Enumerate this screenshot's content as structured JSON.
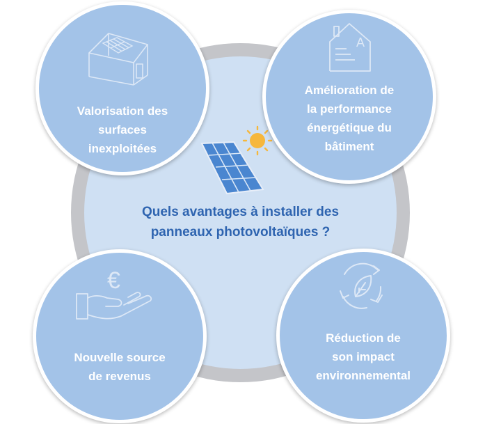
{
  "question": {
    "line1": "Quels avantages à installer des",
    "line2": "panneaux photovoltaïques ?"
  },
  "benefits": [
    {
      "icon": "house-with-solar-panels-icon",
      "lines": [
        "Valorisation des",
        "surfaces",
        "inexploitées"
      ]
    },
    {
      "icon": "energy-rating-house-icon",
      "energy_class": "A",
      "lines": [
        "Amélioration de",
        "la performance",
        "énergétique du",
        "bâtiment"
      ]
    },
    {
      "icon": "euro-coin-hand-icon",
      "currency_symbol": "€",
      "lines": [
        "Nouvelle source",
        "de revenus"
      ]
    },
    {
      "icon": "recycling-leaf-icon",
      "lines": [
        "Réduction de",
        "son impact",
        "environnemental"
      ]
    }
  ],
  "colors": {
    "satellite_fill": "#a3c3e8",
    "center_disc": "#cfe0f3",
    "ring": "#c4c5c9",
    "question_text": "#2e64b0",
    "icon_line": "#dde8f6",
    "panel_blue": "#4a86d0",
    "sun_yellow": "#f6b73c"
  }
}
